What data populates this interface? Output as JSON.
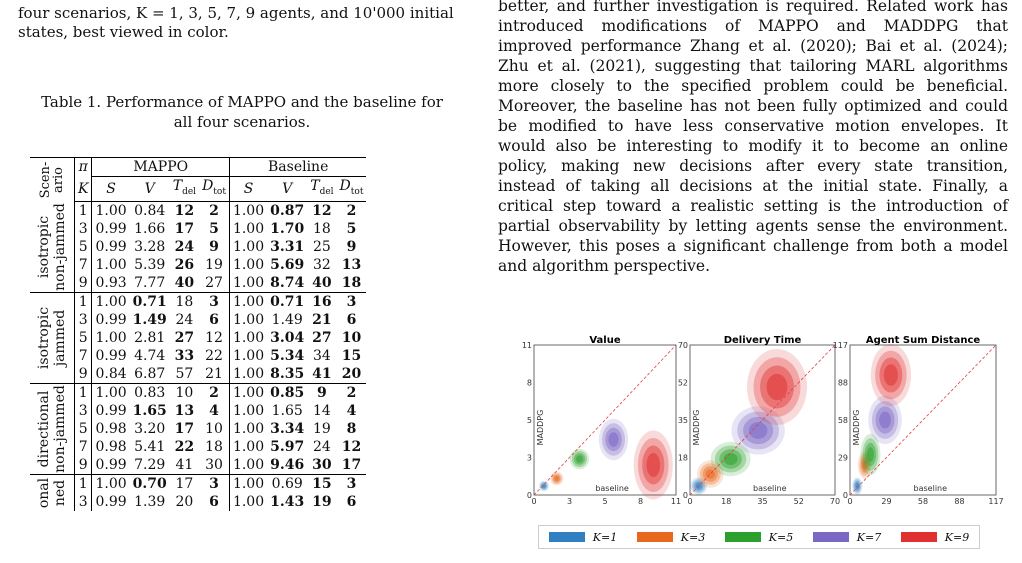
{
  "left": {
    "top_caption": "four scenarios, K = 1, 3, 5, 7, 9 agents, and 10'000 initial states, best viewed in color.",
    "table_caption": "Table 1. Performance of MAPPO and the baseline for all four scenarios.",
    "table": {
      "scen_header": "Scen-ario",
      "pi_header": "π",
      "k_header": "K",
      "group1": "MAPPO",
      "group2": "Baseline",
      "subheads": [
        "S",
        "V",
        "T_del",
        "D_tot",
        "S",
        "V",
        "T_del",
        "D_tot"
      ],
      "scenarios": [
        {
          "label": "isotropic non-jammed",
          "rows": [
            {
              "k": "1",
              "m": [
                "1.00",
                "0.84",
                "12",
                "2"
              ],
              "b": [
                "1.00",
                "0.87",
                "12",
                "2"
              ],
              "mb": [
                false,
                false,
                true,
                true
              ],
              "bb": [
                false,
                true,
                true,
                true
              ]
            },
            {
              "k": "3",
              "m": [
                "0.99",
                "1.66",
                "17",
                "5"
              ],
              "b": [
                "1.00",
                "1.70",
                "18",
                "5"
              ],
              "mb": [
                false,
                false,
                true,
                true
              ],
              "bb": [
                false,
                true,
                false,
                true
              ]
            },
            {
              "k": "5",
              "m": [
                "0.99",
                "3.28",
                "24",
                "9"
              ],
              "b": [
                "1.00",
                "3.31",
                "25",
                "9"
              ],
              "mb": [
                false,
                false,
                true,
                true
              ],
              "bb": [
                false,
                true,
                false,
                true
              ]
            },
            {
              "k": "7",
              "m": [
                "1.00",
                "5.39",
                "26",
                "19"
              ],
              "b": [
                "1.00",
                "5.69",
                "32",
                "13"
              ],
              "mb": [
                false,
                false,
                true,
                false
              ],
              "bb": [
                false,
                true,
                false,
                true
              ]
            },
            {
              "k": "9",
              "m": [
                "0.93",
                "7.77",
                "40",
                "27"
              ],
              "b": [
                "1.00",
                "8.74",
                "40",
                "18"
              ],
              "mb": [
                false,
                false,
                true,
                false
              ],
              "bb": [
                false,
                true,
                true,
                true
              ]
            }
          ]
        },
        {
          "label": "isotropic jammed",
          "rows": [
            {
              "k": "1",
              "m": [
                "1.00",
                "0.71",
                "18",
                "3"
              ],
              "b": [
                "1.00",
                "0.71",
                "16",
                "3"
              ],
              "mb": [
                false,
                true,
                false,
                true
              ],
              "bb": [
                false,
                true,
                true,
                true
              ]
            },
            {
              "k": "3",
              "m": [
                "0.99",
                "1.49",
                "24",
                "6"
              ],
              "b": [
                "1.00",
                "1.49",
                "21",
                "6"
              ],
              "mb": [
                false,
                true,
                false,
                true
              ],
              "bb": [
                false,
                false,
                true,
                true
              ]
            },
            {
              "k": "5",
              "m": [
                "1.00",
                "2.81",
                "27",
                "12"
              ],
              "b": [
                "1.00",
                "3.04",
                "27",
                "10"
              ],
              "mb": [
                false,
                false,
                true,
                false
              ],
              "bb": [
                false,
                true,
                true,
                true
              ]
            },
            {
              "k": "7",
              "m": [
                "0.99",
                "4.74",
                "33",
                "22"
              ],
              "b": [
                "1.00",
                "5.34",
                "34",
                "15"
              ],
              "mb": [
                false,
                false,
                true,
                false
              ],
              "bb": [
                false,
                true,
                false,
                true
              ]
            },
            {
              "k": "9",
              "m": [
                "0.84",
                "6.87",
                "57",
                "21"
              ],
              "b": [
                "1.00",
                "8.35",
                "41",
                "20"
              ],
              "mb": [
                false,
                false,
                false,
                false
              ],
              "bb": [
                false,
                true,
                true,
                true
              ]
            }
          ]
        },
        {
          "label": "directional non-jammed",
          "rows": [
            {
              "k": "1",
              "m": [
                "1.00",
                "0.83",
                "10",
                "2"
              ],
              "b": [
                "1.00",
                "0.85",
                "9",
                "2"
              ],
              "mb": [
                false,
                false,
                false,
                true
              ],
              "bb": [
                false,
                true,
                true,
                true
              ]
            },
            {
              "k": "3",
              "m": [
                "0.99",
                "1.65",
                "13",
                "4"
              ],
              "b": [
                "1.00",
                "1.65",
                "14",
                "4"
              ],
              "mb": [
                false,
                true,
                true,
                true
              ],
              "bb": [
                false,
                false,
                false,
                true
              ]
            },
            {
              "k": "5",
              "m": [
                "0.98",
                "3.20",
                "17",
                "10"
              ],
              "b": [
                "1.00",
                "3.34",
                "19",
                "8"
              ],
              "mb": [
                false,
                false,
                true,
                false
              ],
              "bb": [
                false,
                true,
                false,
                true
              ]
            },
            {
              "k": "7",
              "m": [
                "0.98",
                "5.41",
                "22",
                "18"
              ],
              "b": [
                "1.00",
                "5.97",
                "24",
                "12"
              ],
              "mb": [
                false,
                false,
                true,
                false
              ],
              "bb": [
                false,
                true,
                false,
                true
              ]
            },
            {
              "k": "9",
              "m": [
                "0.99",
                "7.29",
                "41",
                "30"
              ],
              "b": [
                "1.00",
                "9.46",
                "30",
                "17"
              ],
              "mb": [
                false,
                false,
                false,
                false
              ],
              "bb": [
                false,
                true,
                true,
                true
              ]
            }
          ]
        },
        {
          "label": "onal ned",
          "rows": [
            {
              "k": "1",
              "m": [
                "1.00",
                "0.70",
                "17",
                "3"
              ],
              "b": [
                "1.00",
                "0.69",
                "15",
                "3"
              ],
              "mb": [
                false,
                true,
                false,
                true
              ],
              "bb": [
                false,
                false,
                true,
                true
              ]
            },
            {
              "k": "3",
              "m": [
                "0.99",
                "1.39",
                "20",
                "6"
              ],
              "b": [
                "1.00",
                "1.43",
                "19",
                "6"
              ],
              "mb": [
                false,
                false,
                false,
                true
              ],
              "bb": [
                false,
                true,
                true,
                true
              ]
            }
          ]
        }
      ]
    }
  },
  "right": {
    "paragraph": "better, and further investigation is required. Related work has introduced modifications of MAPPO and MADDPG that improved performance Zhang et al. (2020); Bai et al. (2024); Zhu et al. (2021), suggesting that tailoring MARL algorithms more closely to the specified problem could be beneficial. Moreover, the baseline has not been fully optimized and could be modified to have less conservative motion envelopes. It would also be interesting to modify it to become an online policy, making new decisions after every state transition, instead of taking all decisions at the initial state. Finally, a critical step toward a realistic setting is the introduction of partial observability by letting agents sense the environment. However, this poses a significant challenge from both a model and algorithm perspective.",
    "figure": {
      "ylabel": "MADDPG",
      "xlabel": "baseline",
      "panels": [
        {
          "title": "Value",
          "xticks": [
            "0",
            "3",
            "5",
            "8",
            "11"
          ],
          "yticks": [
            "0",
            "3",
            "5",
            "8",
            "11"
          ]
        },
        {
          "title": "Delivery Time",
          "xticks": [
            "0",
            "18",
            "35",
            "52",
            "70"
          ],
          "yticks": [
            "0",
            "18",
            "35",
            "52",
            "70"
          ]
        },
        {
          "title": "Agent Sum Distance",
          "xticks": [
            "0",
            "29",
            "58",
            "88",
            "117"
          ],
          "yticks": [
            "0",
            "29",
            "58",
            "88",
            "117"
          ]
        }
      ],
      "legend": [
        {
          "label": "K=1",
          "color": "#2f7fc1"
        },
        {
          "label": "K=3",
          "color": "#e8681e"
        },
        {
          "label": "K=5",
          "color": "#2ca02c"
        },
        {
          "label": "K=7",
          "color": "#7b68c4"
        },
        {
          "label": "K=9",
          "color": "#e03030"
        }
      ]
    }
  }
}
